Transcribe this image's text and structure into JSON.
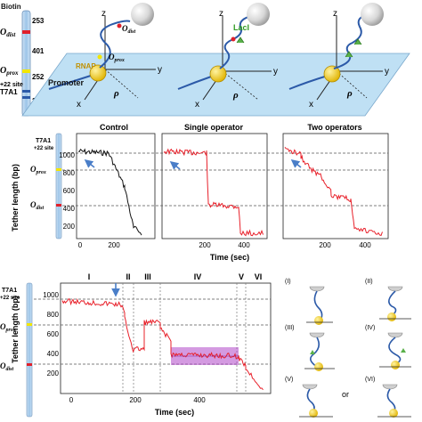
{
  "dna_bar_top": {
    "top_label": "Biotin",
    "len_253": "253",
    "o_dist": "O",
    "o_dist_sub": "dist",
    "len_401": "401",
    "o_prox": "O",
    "o_prox_sub": "prox",
    "len_252": "252",
    "site_22": "+22 site",
    "t7a1": "T7A1",
    "len_245": "245"
  },
  "schematic": {
    "axis_z": "z",
    "axis_x": "x",
    "axis_y": "y",
    "rho": "ρ",
    "o_dist": "O",
    "o_dist_sub": "dist",
    "o_prox": "O",
    "o_prox_sub": "prox",
    "rnap": "RNAP",
    "promoter": "Promoter",
    "laci": "LacI"
  },
  "panel_b": {
    "titles": [
      "Control",
      "Single operator",
      "Two operators"
    ],
    "ylabel": "Tether length (bp)",
    "yticks": [
      "1000",
      "800",
      "600",
      "400",
      "200"
    ],
    "xlabel": "Time (sec)",
    "xticks": [
      [
        "0",
        "200"
      ],
      [
        "200",
        "400"
      ],
      [
        "200",
        "400"
      ]
    ],
    "bar_t7a1": "T7A1",
    "bar_site": "+22 site",
    "bar_o_prox": "O",
    "bar_o_prox_sub": "prox",
    "bar_o_dist": "O",
    "bar_o_dist_sub": "dist"
  },
  "panel_c": {
    "stages": [
      "I",
      "II",
      "III",
      "IV",
      "V",
      "VI"
    ],
    "ylabel": "Tether length (bp)",
    "yticks": [
      "1000",
      "800",
      "600",
      "400",
      "200"
    ],
    "xticks": [
      "0",
      "200",
      "400"
    ],
    "xlabel": "Time (sec)",
    "bar_t7a1": "T7A1",
    "bar_site": "+22 site",
    "bar_o_prox": "O",
    "bar_o_prox_sub": "prox",
    "bar_o_dist": "O",
    "bar_o_dist_sub": "dist",
    "cartoon_labels": [
      "(I)",
      "(II)",
      "(III)",
      "(IV)",
      "(V)",
      "(VI)"
    ],
    "or_label": "or"
  },
  "colors": {
    "trace_control": "#111111",
    "trace_red": "#e8202a",
    "dna_blue": "#2c5aa8",
    "bar_fill": "#9cc4e8",
    "plane": "#bfe0f4",
    "highlight": "#b047c8",
    "o_dist_mark": "#e0202a",
    "o_prox_mark": "#f2e600",
    "rnap": "#f2cc1a",
    "arrow": "#4a7ec8"
  }
}
